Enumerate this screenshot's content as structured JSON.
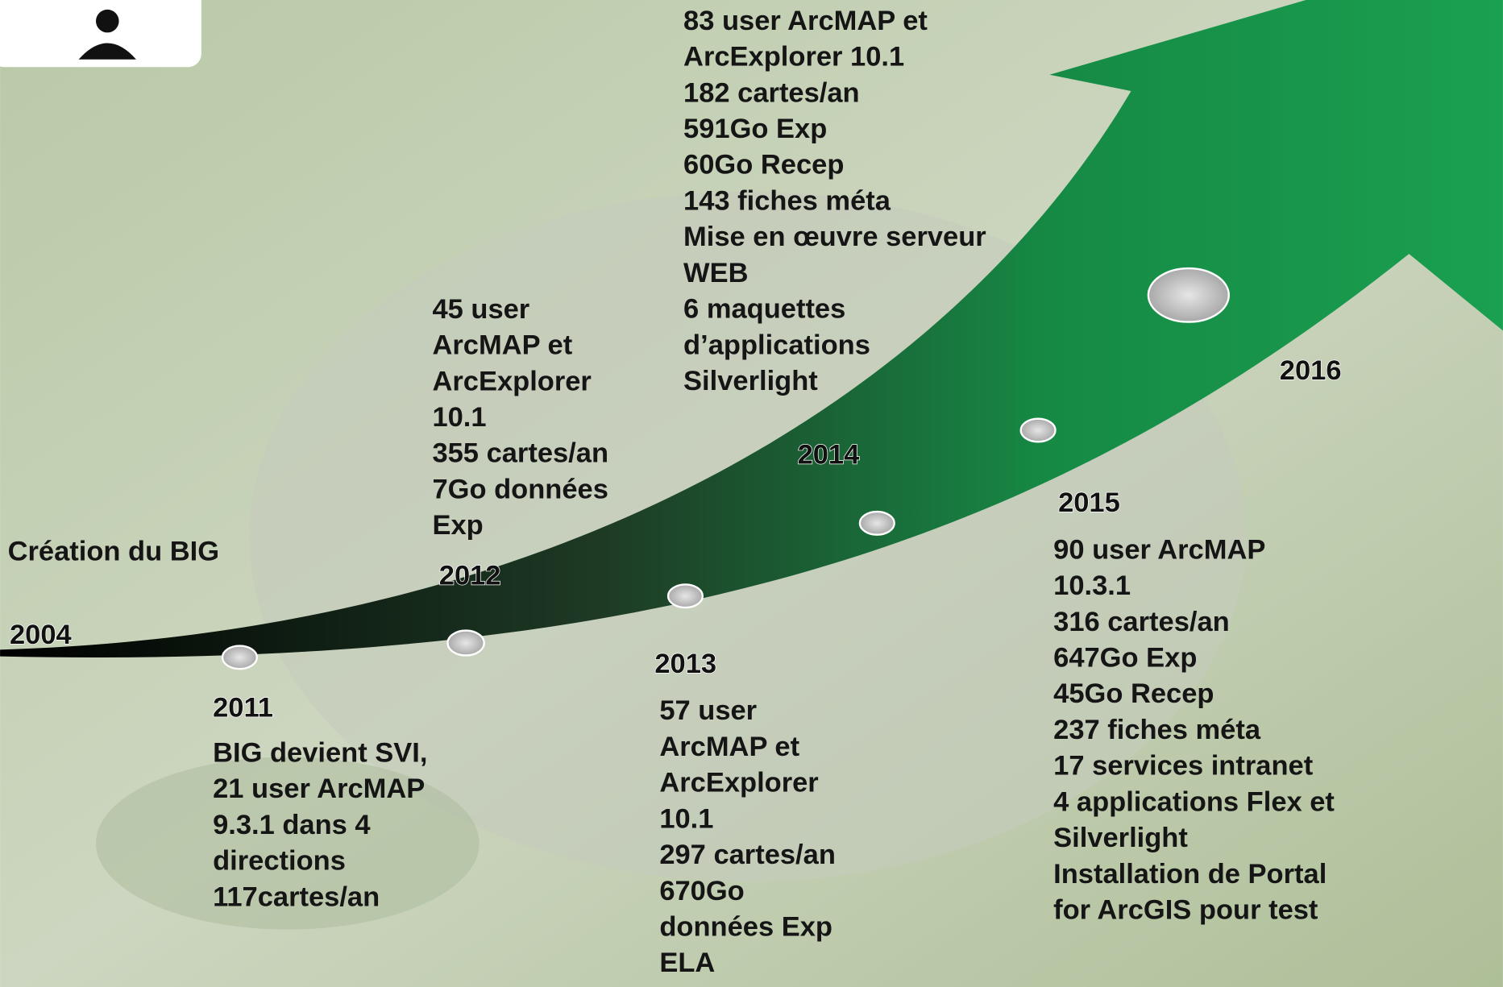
{
  "milestones": [
    {
      "year": "2004",
      "lines": [
        "Création du BIG"
      ]
    },
    {
      "year": "2011",
      "lines": [
        "BIG devient SVI,",
        "21 user ArcMAP",
        "9.3.1 dans 4",
        "directions",
        "117cartes/an"
      ]
    },
    {
      "year": "2012",
      "lines": [
        "45 user",
        "ArcMAP et",
        "ArcExplorer",
        "10.1",
        "355 cartes/an",
        "7Go données",
        "Exp"
      ]
    },
    {
      "year": "2013",
      "lines": [
        "57 user",
        "ArcMAP et",
        "ArcExplorer",
        "10.1",
        "297 cartes/an",
        "670Go",
        "données Exp",
        "ELA"
      ]
    },
    {
      "year": "2014",
      "lines": [
        "83 user ArcMAP et",
        "ArcExplorer 10.1",
        "182 cartes/an",
        "591Go Exp",
        "60Go Recep",
        "143 fiches méta",
        "Mise en œuvre serveur",
        "WEB",
        "6 maquettes",
        "d’applications",
        "Silverlight"
      ]
    },
    {
      "year": "2015",
      "lines": [
        "90 user ArcMAP",
        "10.3.1",
        "316 cartes/an",
        "647Go Exp",
        "45Go Recep",
        "237 fiches méta",
        "17 services intranet",
        "4 applications Flex et",
        "Silverlight",
        "Installation de Portal",
        "for ArcGIS pour test"
      ]
    },
    {
      "year": "2016",
      "lines": []
    }
  ]
}
